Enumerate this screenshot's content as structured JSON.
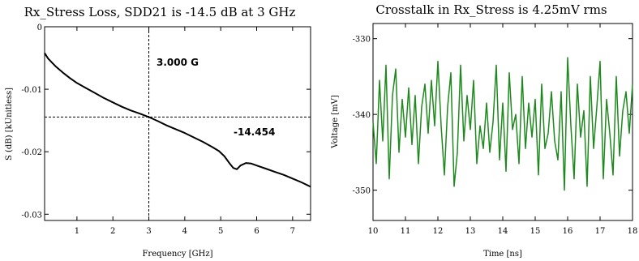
{
  "chart_data": [
    {
      "type": "line",
      "title": "Rx_Stress Loss, SDD21 is -14.5 dB at 3 GHz",
      "xlabel": "Frequency [GHz]",
      "ylabel": "S (dB) [kUnitless]",
      "xlim": [
        0.1,
        7.5
      ],
      "ylim": [
        -0.031,
        0
      ],
      "xticks": [
        1,
        2,
        3,
        4,
        5,
        6,
        7
      ],
      "yticks": [
        0,
        -0.01,
        -0.02,
        -0.03
      ],
      "ytick_labels": [
        "0",
        "-0.01",
        "-0.02",
        "-0.03"
      ],
      "grid": false,
      "line_color": "#000000",
      "cursor": {
        "x": 3.0,
        "y": -0.014454,
        "x_label": "3.000 G",
        "y_label": "-14.454"
      },
      "series": [
        {
          "x": [
            0.1,
            0.2,
            0.4,
            0.6,
            0.8,
            1.0,
            1.25,
            1.5,
            1.75,
            2.0,
            2.25,
            2.5,
            2.75,
            3.0,
            3.25,
            3.5,
            3.75,
            4.0,
            4.25,
            4.5,
            4.75,
            4.95,
            5.1,
            5.25,
            5.35,
            5.45,
            5.55,
            5.7,
            5.85,
            6.0,
            6.25,
            6.5,
            6.75,
            7.0,
            7.25,
            7.5
          ],
          "y": [
            -0.0042,
            -0.0051,
            -0.0063,
            -0.0073,
            -0.0082,
            -0.009,
            -0.0098,
            -0.0106,
            -0.0114,
            -0.0121,
            -0.0128,
            -0.0134,
            -0.0139,
            -0.01445,
            -0.0151,
            -0.0158,
            -0.0164,
            -0.017,
            -0.0177,
            -0.0184,
            -0.0192,
            -0.0199,
            -0.0207,
            -0.0219,
            -0.0226,
            -0.0228,
            -0.0222,
            -0.0218,
            -0.0219,
            -0.0222,
            -0.0227,
            -0.0232,
            -0.0237,
            -0.0243,
            -0.0249,
            -0.0256
          ]
        }
      ]
    },
    {
      "type": "line",
      "title": "Crosstalk in Rx_Stress is 4.25mV rms",
      "xlabel": "Time [ns]",
      "ylabel": "Voltage [mV]",
      "xlim": [
        10,
        18
      ],
      "ylim": [
        -354,
        -328
      ],
      "xticks": [
        10,
        11,
        12,
        13,
        14,
        15,
        16,
        17,
        18
      ],
      "yticks": [
        -330,
        -340,
        -350
      ],
      "grid": false,
      "line_color": "#1e8a1e",
      "series": [
        {
          "x": [
            10.0,
            10.1,
            10.2,
            10.3,
            10.4,
            10.5,
            10.6,
            10.7,
            10.8,
            10.9,
            11.0,
            11.1,
            11.2,
            11.3,
            11.4,
            11.5,
            11.6,
            11.7,
            11.8,
            11.9,
            12.0,
            12.1,
            12.2,
            12.3,
            12.4,
            12.5,
            12.6,
            12.7,
            12.8,
            12.9,
            13.0,
            13.1,
            13.2,
            13.3,
            13.4,
            13.5,
            13.6,
            13.7,
            13.8,
            13.9,
            14.0,
            14.1,
            14.2,
            14.3,
            14.4,
            14.5,
            14.6,
            14.7,
            14.8,
            14.9,
            15.0,
            15.1,
            15.2,
            15.3,
            15.4,
            15.5,
            15.6,
            15.7,
            15.8,
            15.9,
            16.0,
            16.1,
            16.2,
            16.3,
            16.4,
            16.5,
            16.6,
            16.7,
            16.8,
            16.9,
            17.0,
            17.1,
            17.2,
            17.3,
            17.4,
            17.5,
            17.6,
            17.7,
            17.8,
            17.9,
            18.0
          ],
          "y": [
            -341.0,
            -346.5,
            -335.5,
            -343.5,
            -333.5,
            -348.5,
            -337.5,
            -334.0,
            -345.0,
            -338.0,
            -343.0,
            -336.5,
            -344.0,
            -337.5,
            -346.5,
            -339.0,
            -336.0,
            -342.5,
            -335.5,
            -341.5,
            -333.0,
            -341.5,
            -348.0,
            -339.0,
            -334.5,
            -349.5,
            -345.0,
            -333.5,
            -343.5,
            -337.5,
            -342.0,
            -335.5,
            -346.5,
            -341.5,
            -344.5,
            -338.5,
            -345.0,
            -341.0,
            -333.5,
            -346.0,
            -338.5,
            -347.5,
            -334.5,
            -342.0,
            -340.0,
            -346.5,
            -335.0,
            -344.5,
            -338.5,
            -343.0,
            -338.0,
            -348.0,
            -336.0,
            -344.5,
            -342.5,
            -337.0,
            -343.5,
            -346.0,
            -337.0,
            -350.0,
            -332.5,
            -341.5,
            -348.5,
            -336.0,
            -343.0,
            -339.5,
            -349.5,
            -335.0,
            -344.5,
            -339.0,
            -333.0,
            -348.5,
            -338.0,
            -342.5,
            -348.0,
            -335.0,
            -345.5,
            -339.5,
            -337.0,
            -342.5,
            -336.0
          ]
        }
      ]
    }
  ]
}
